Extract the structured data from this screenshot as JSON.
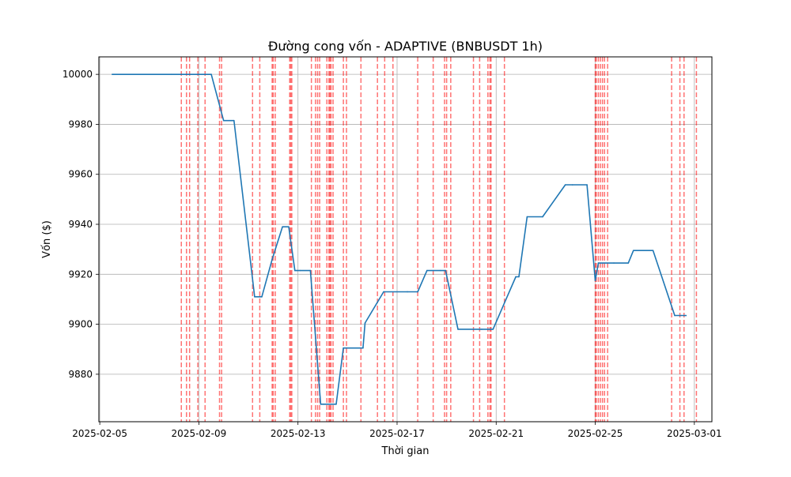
{
  "chart_data": {
    "type": "line",
    "title": "Đường cong vốn - ADAPTIVE (BNBUSDT 1h)",
    "xlabel": "Thời gian",
    "ylabel": "Vốn ($)",
    "xlim": [
      "2025-02-04T23:07",
      "2025-03-01T17:00"
    ],
    "ylim": [
      9861,
      10007
    ],
    "grid": true,
    "x_ticks": [
      "2025-02-05",
      "2025-02-09",
      "2025-02-13",
      "2025-02-17",
      "2025-02-21",
      "2025-02-25",
      "2025-03-01"
    ],
    "y_ticks": [
      9880,
      9900,
      9920,
      9940,
      9960,
      9980,
      10000
    ],
    "colors": {
      "line": "#1f77b4",
      "markers": "#ff0000",
      "grid": "#b0b0b0"
    },
    "series": [
      {
        "x": [
          "2025-02-05T12:00",
          "2025-02-07T21:00",
          "2025-02-09T12:00",
          "2025-02-10T00:00",
          "2025-02-10T10:00",
          "2025-02-11T06:00",
          "2025-02-11T13:00",
          "2025-02-11T23:00",
          "2025-02-12T09:00",
          "2025-02-12T15:00",
          "2025-02-12T21:00",
          "2025-02-12T23:00",
          "2025-02-13T02:00",
          "2025-02-13T12:00",
          "2025-02-13T22:00",
          "2025-02-14T01:00",
          "2025-02-14T13:00",
          "2025-02-14T20:00",
          "2025-02-15T15:00",
          "2025-02-15T17:00",
          "2025-02-16T11:00",
          "2025-02-17T10:00",
          "2025-02-17T20:00",
          "2025-02-18T05:00",
          "2025-02-18T18:00",
          "2025-02-18T23:00",
          "2025-02-19T11:00",
          "2025-02-20T10:00",
          "2025-02-20T21:00",
          "2025-02-21T19:00",
          "2025-02-21T22:00",
          "2025-02-22T06:00",
          "2025-02-22T21:00",
          "2025-02-23T19:00",
          "2025-02-24T02:00",
          "2025-02-24T16:00",
          "2025-02-25T00:00",
          "2025-02-25T03:00",
          "2025-02-25T18:00",
          "2025-02-26T08:00",
          "2025-02-26T13:00",
          "2025-02-27T08:00",
          "2025-02-28T05:00",
          "2025-02-28T16:00"
        ],
        "values": [
          10000,
          10000,
          10000,
          9981.5,
          9981.5,
          9911,
          9911,
          9926,
          9939,
          9939,
          9921.5,
          9921.5,
          9921.5,
          9921.5,
          9868,
          9868,
          9868,
          9890.5,
          9890.5,
          9900.5,
          9913,
          9913,
          9913,
          9921.5,
          9921.5,
          9921.5,
          9898,
          9898,
          9898,
          9919,
          9919,
          9943,
          9943,
          9955.8,
          9955.8,
          9955.8,
          9917.5,
          9924.5,
          9924.5,
          9924.5,
          9929.5,
          9929.5,
          9903.5,
          9903.5
        ]
      }
    ],
    "markers": [
      "2025-02-08T07:00",
      "2025-02-08T12:00",
      "2025-02-08T15:00",
      "2025-02-08T23:00",
      "2025-02-09T06:00",
      "2025-02-09T20:00",
      "2025-02-09T22:00",
      "2025-02-11T04:00",
      "2025-02-11T11:00",
      "2025-02-11T23:00",
      "2025-02-12T00:00",
      "2025-02-12T02:00",
      "2025-02-12T16:00",
      "2025-02-12T17:00",
      "2025-02-12T18:00",
      "2025-02-13T13:00",
      "2025-02-13T17:00",
      "2025-02-13T19:00",
      "2025-02-13T21:00",
      "2025-02-14T04:00",
      "2025-02-14T06:00",
      "2025-02-14T07:00",
      "2025-02-14T08:00",
      "2025-02-14T10:00",
      "2025-02-14T20:00",
      "2025-02-14T23:00",
      "2025-02-15T13:00",
      "2025-02-16T05:00",
      "2025-02-16T12:00",
      "2025-02-16T20:00",
      "2025-02-17T20:00",
      "2025-02-18T11:00",
      "2025-02-18T22:00",
      "2025-02-19T00:00",
      "2025-02-19T04:00",
      "2025-02-20T02:00",
      "2025-02-20T08:00",
      "2025-02-20T16:00",
      "2025-02-20T18:00",
      "2025-02-20T19:00",
      "2025-02-21T08:00",
      "2025-02-25T00:00",
      "2025-02-25T01:00",
      "2025-02-25T03:00",
      "2025-02-25T05:00",
      "2025-02-25T07:00",
      "2025-02-25T09:00",
      "2025-02-25T12:00",
      "2025-02-28T02:00",
      "2025-02-28T10:00",
      "2025-02-28T14:00",
      "2025-03-01T02:00"
    ]
  }
}
